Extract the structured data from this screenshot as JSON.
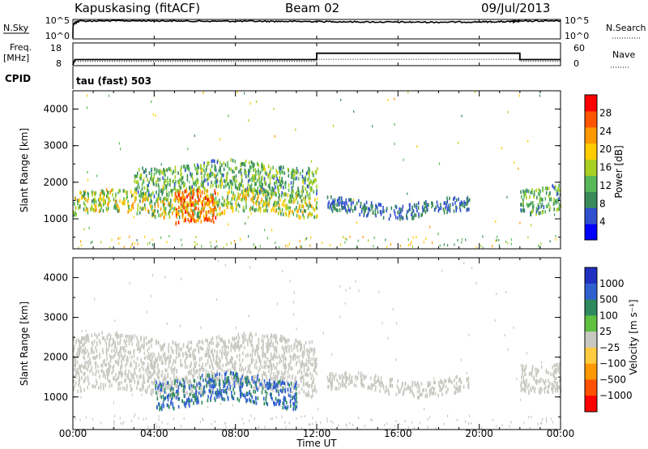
{
  "header": {
    "station": "Kapuskasing (fitACF)",
    "beam": "Beam 02",
    "date": "09/Jul/2013"
  },
  "strip": {
    "nsky_label": "N.Sky",
    "nsearch_label": "N.Search",
    "nsky_ticks": [
      "10^5",
      "10^0"
    ],
    "nsearch_ticks": [
      "10^5",
      "10^0"
    ],
    "freq_label": "Freq.",
    "freq_unit": "[MHz]",
    "freq_ticks": [
      "18",
      "8"
    ],
    "nave_label": "Nave",
    "nave_ticks": [
      "60",
      "0"
    ],
    "cpid_label": "CPID",
    "cpid_text": "tau (fast) 503"
  },
  "panels": {
    "ylabel": "Slant Range [km]",
    "yticks": [
      "4000",
      "3000",
      "2000",
      "1000"
    ],
    "xlabel": "Time UT",
    "xticks": [
      "00:00",
      "04:00",
      "08:00",
      "12:00",
      "16:00",
      "20:00",
      "00:00"
    ]
  },
  "colorbars": {
    "power_label": "Power [dB]",
    "power_ticks": [
      "28",
      "24",
      "20",
      "16",
      "12",
      "8",
      "4"
    ],
    "power_colors": [
      "#0000ff",
      "#3050d0",
      "#3a8a5a",
      "#58b858",
      "#a8d020",
      "#ffcc00",
      "#ff9900",
      "#ff5500",
      "#ff0000"
    ],
    "velocity_label": "Velocity [m s⁻¹]",
    "velocity_ticks": [
      "1000",
      "500",
      "100",
      "25",
      "−25",
      "−100",
      "−500",
      "−1000"
    ],
    "velocity_colors": [
      "#2030c0",
      "#3060d0",
      "#2e8a5e",
      "#60c040",
      "#c8c8c0",
      "#ffcc40",
      "#ff9900",
      "#ff5000",
      "#ff0000"
    ]
  },
  "chart_data": [
    {
      "type": "line",
      "title": "N.Sky / N.Search",
      "x_range_hours": [
        0,
        24
      ],
      "series": [
        {
          "name": "N.Sky",
          "x": [
            0,
            0.1,
            0.3,
            2,
            4,
            6,
            8,
            10,
            12,
            14,
            16,
            18,
            20,
            21.5,
            22,
            24
          ],
          "y": [
            1,
            20000,
            60000,
            70000,
            70000,
            55000,
            55000,
            50000,
            45000,
            35000,
            30000,
            30000,
            35000,
            40000,
            55000,
            70000
          ]
        }
      ]
    },
    {
      "type": "line",
      "title": "Freq. / Nave",
      "x_range_hours": [
        0,
        24
      ],
      "series": [
        {
          "name": "Freq.",
          "x": [
            0,
            0.1,
            12,
            12.001,
            22,
            22.001,
            24
          ],
          "y": [
            8,
            10.5,
            10.5,
            13.5,
            13.5,
            10.5,
            10.5
          ]
        },
        {
          "name": "Nave",
          "x": [
            0,
            12,
            12.001,
            22,
            22.001,
            24
          ],
          "y": [
            10,
            10,
            16,
            16,
            10,
            10
          ]
        }
      ]
    },
    {
      "type": "heatmap",
      "title": "Power [dB]",
      "xlabel": "Time UT",
      "ylabel": "Slant Range [km]",
      "x_range_hours": [
        0,
        24
      ],
      "ylim": [
        180,
        4500
      ],
      "colorbar_ticks": [
        4,
        8,
        12,
        16,
        20,
        24,
        28
      ],
      "echo_regions": [
        {
          "t": [
            0,
            12
          ],
          "range_km": [
            1100,
            1700
          ],
          "power_db": [
            8,
            24
          ]
        },
        {
          "t": [
            3,
            12
          ],
          "range_km": [
            1700,
            2500
          ],
          "power_db": [
            6,
            18
          ]
        },
        {
          "t": [
            5,
            7
          ],
          "range_km": [
            800,
            1700
          ],
          "power_db": [
            20,
            30
          ]
        },
        {
          "t": [
            12.5,
            19.5
          ],
          "range_km": [
            1100,
            1500
          ],
          "power_db": [
            4,
            10
          ]
        },
        {
          "t": [
            22,
            24
          ],
          "range_km": [
            1200,
            1900
          ],
          "power_db": [
            6,
            16
          ]
        }
      ]
    },
    {
      "type": "heatmap",
      "title": "Velocity [m s-1]",
      "xlabel": "Time UT",
      "ylabel": "Slant Range [km]",
      "x_range_hours": [
        0,
        24
      ],
      "ylim": [
        180,
        4500
      ],
      "colorbar_ticks": [
        1000,
        500,
        100,
        25,
        -25,
        -100,
        -500,
        -1000
      ],
      "echo_regions": [
        {
          "t": [
            0,
            12
          ],
          "range_km": [
            1100,
            2500
          ],
          "velocity_ms": [
            -25,
            25
          ]
        },
        {
          "t": [
            4,
            11
          ],
          "range_km": [
            800,
            1500
          ],
          "velocity_ms": [
            100,
            1000
          ]
        },
        {
          "t": [
            12.5,
            19.5
          ],
          "range_km": [
            1100,
            1500
          ],
          "velocity_ms": [
            -25,
            25
          ]
        },
        {
          "t": [
            22,
            24
          ],
          "range_km": [
            1200,
            1900
          ],
          "velocity_ms": [
            -25,
            25
          ]
        }
      ]
    }
  ]
}
